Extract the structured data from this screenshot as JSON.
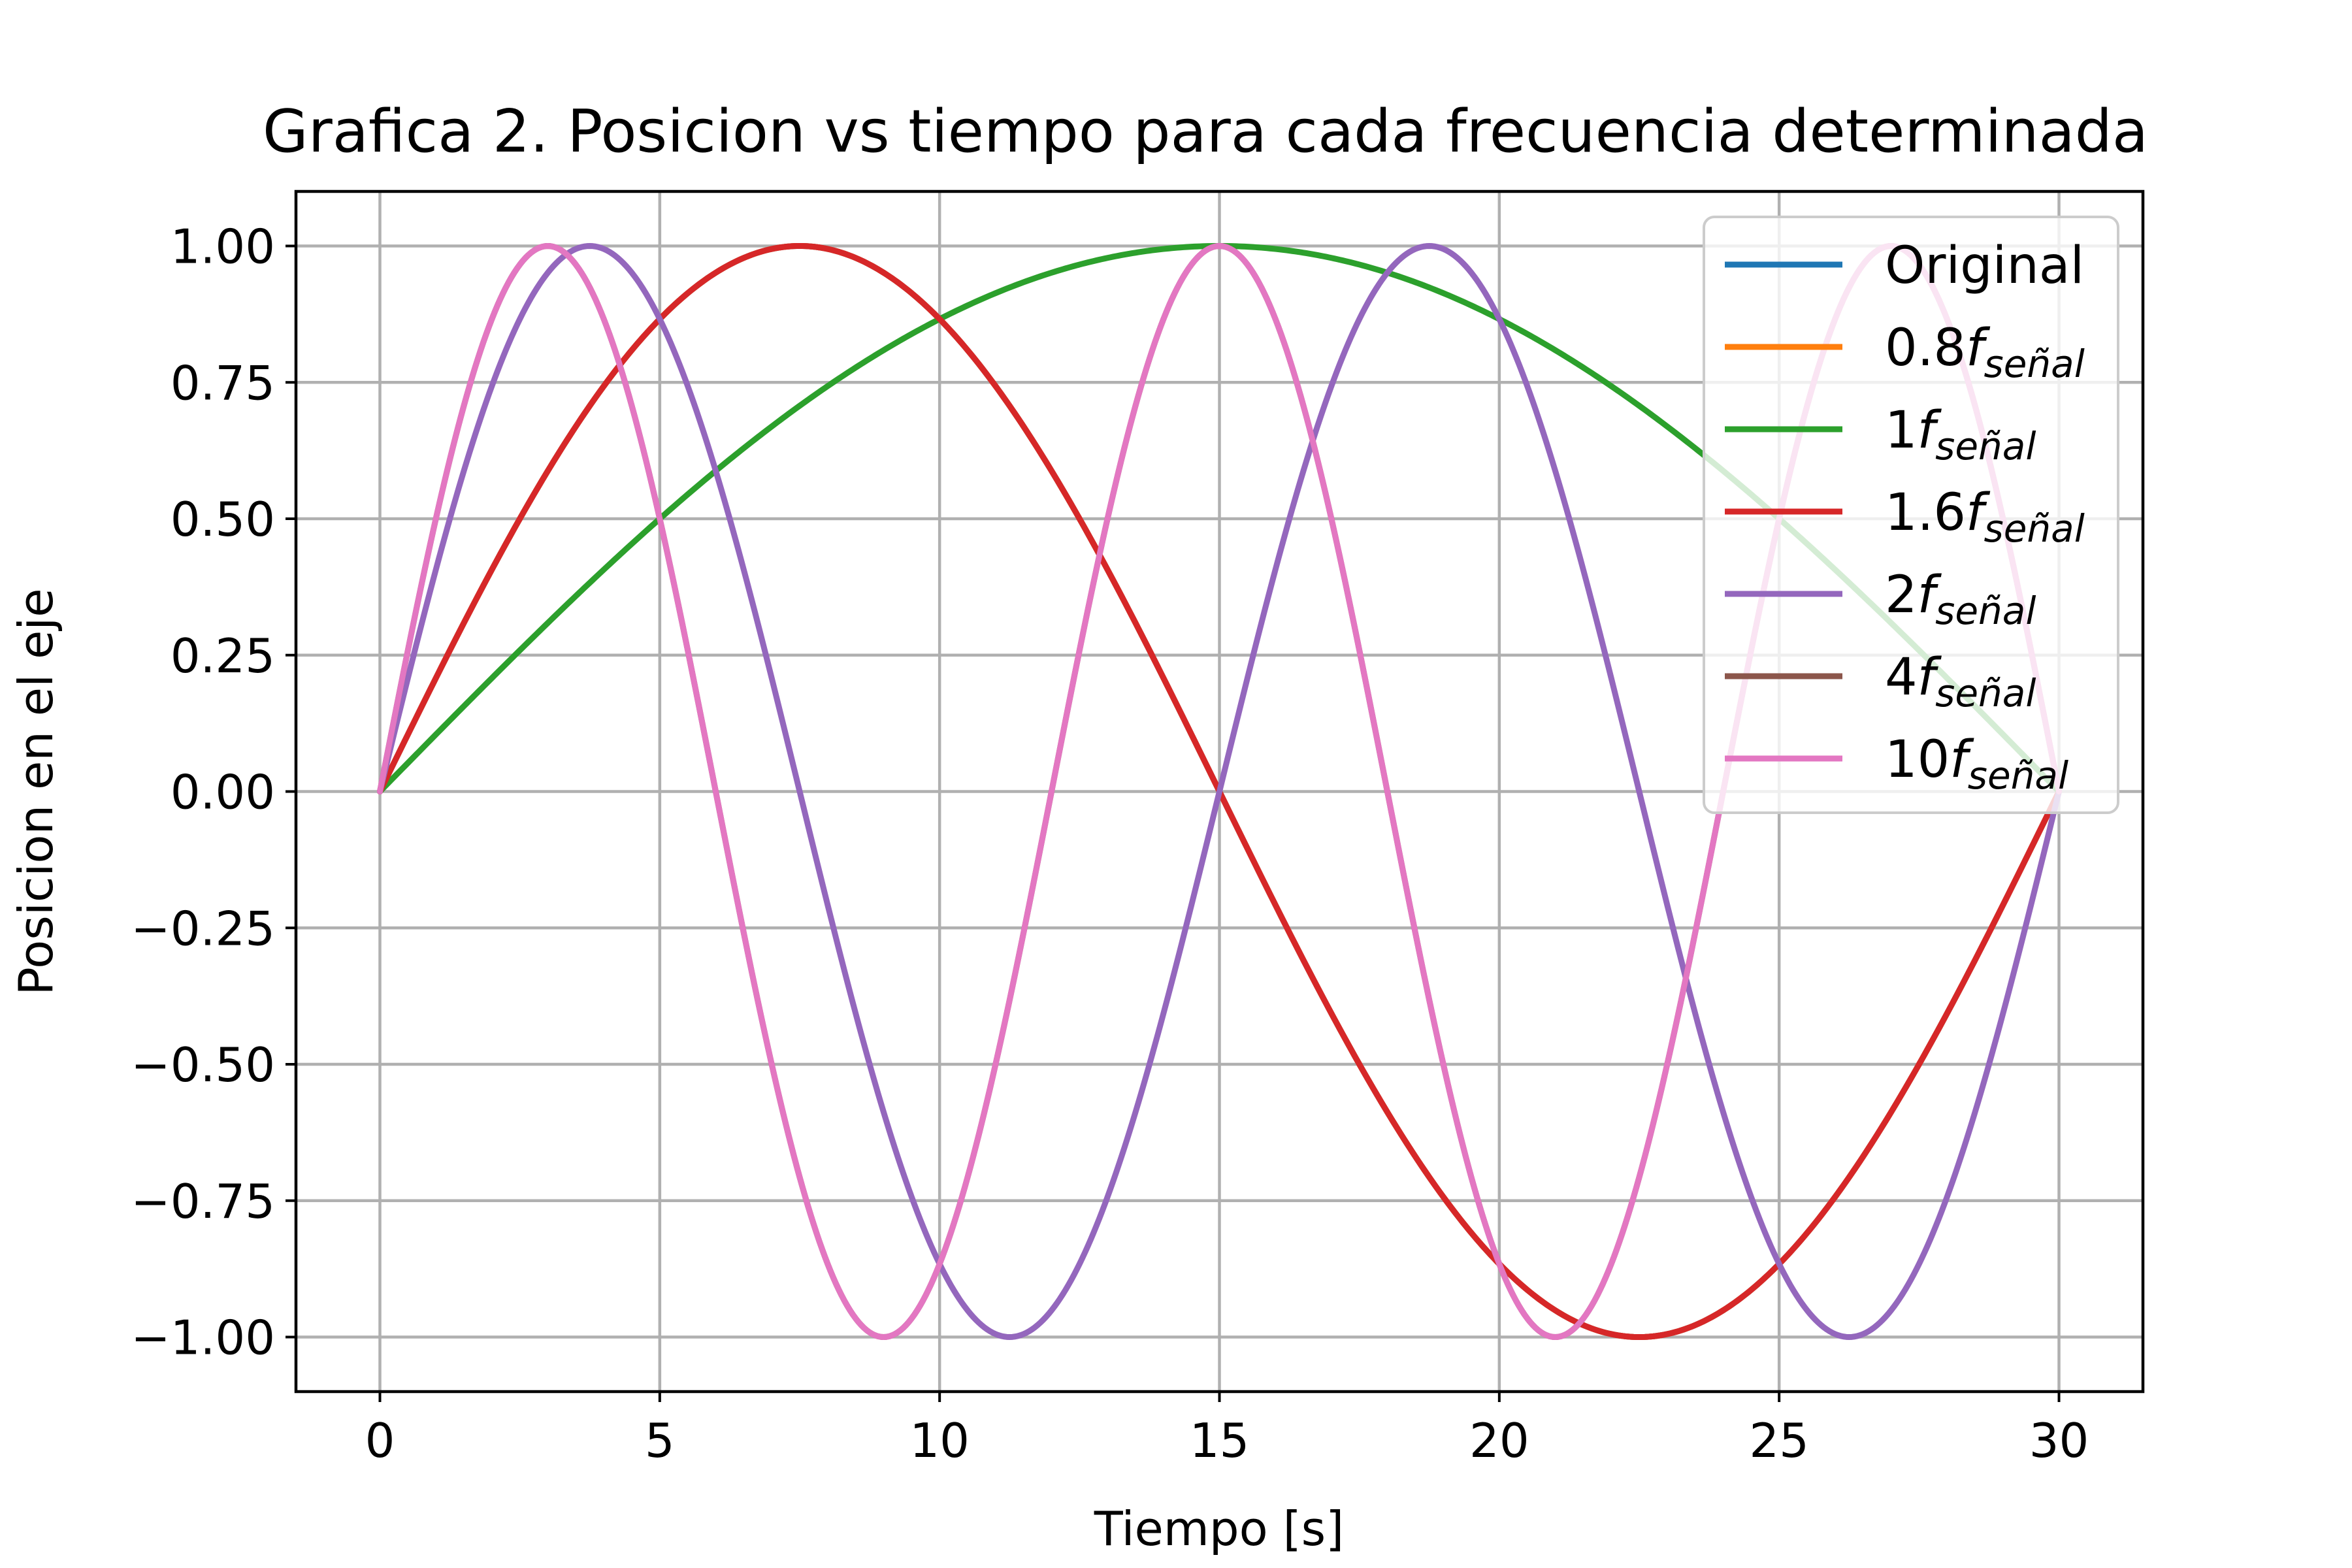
{
  "chart_data": {
    "type": "line",
    "title": "Grafica 2. Posicion vs tiempo para cada frecuencia determinada",
    "xlabel": "Tiempo [s]",
    "ylabel": "Posicion en el eje",
    "xlim": [
      -1.5,
      31.5
    ],
    "ylim": [
      -1.1,
      1.1
    ],
    "xticks": [
      0,
      5,
      10,
      15,
      20,
      25,
      30
    ],
    "xtick_labels": [
      "0",
      "5",
      "10",
      "15",
      "20",
      "25",
      "30"
    ],
    "yticks": [
      1.0,
      0.75,
      0.5,
      0.25,
      0.0,
      -0.25,
      -0.5,
      -0.75,
      -1.0
    ],
    "ytick_labels": [
      "1.00",
      "0.75",
      "0.50",
      "0.25",
      "0.00",
      "−0.25",
      "−0.50",
      "−0.75",
      "−1.00"
    ],
    "grid": true,
    "legend_position": "top-right",
    "series": [
      {
        "name": "Original",
        "label_main": "Original",
        "label_sub": "",
        "color": "#1f77b4",
        "frequency_hz": 0.0333333,
        "t_start": 0,
        "t_end": 30,
        "amplitude": 1
      },
      {
        "name": "0.8f_señal",
        "label_main": "0.8",
        "label_sub": "señal",
        "color": "#ff7f0e",
        "frequency_hz": 0.0333333,
        "t_start": 0,
        "t_end": 30,
        "amplitude": 1
      },
      {
        "name": "1f_señal",
        "label_main": "1",
        "label_sub": "señal",
        "color": "#2ca02c",
        "frequency_hz": 0.0166667,
        "t_start": 0,
        "t_end": 30,
        "amplitude": 1
      },
      {
        "name": "1.6f_señal",
        "label_main": "1.6",
        "label_sub": "señal",
        "color": "#d62728",
        "frequency_hz": 0.0333333,
        "t_start": 0,
        "t_end": 30,
        "amplitude": 1
      },
      {
        "name": "2f_señal",
        "label_main": "2",
        "label_sub": "señal",
        "color": "#9467bd",
        "frequency_hz": 0.0666667,
        "t_start": 0,
        "t_end": 30,
        "amplitude": 1
      },
      {
        "name": "4f_señal",
        "label_main": "4",
        "label_sub": "señal",
        "color": "#8c564b",
        "frequency_hz": 0.0833333,
        "t_start": 0,
        "t_end": 30,
        "amplitude": 1
      },
      {
        "name": "10f_señal",
        "label_main": "10",
        "label_sub": "señal",
        "color": "#e377c2",
        "frequency_hz": 0.0833333,
        "t_start": 0,
        "t_end": 30,
        "amplitude": 1
      }
    ]
  }
}
